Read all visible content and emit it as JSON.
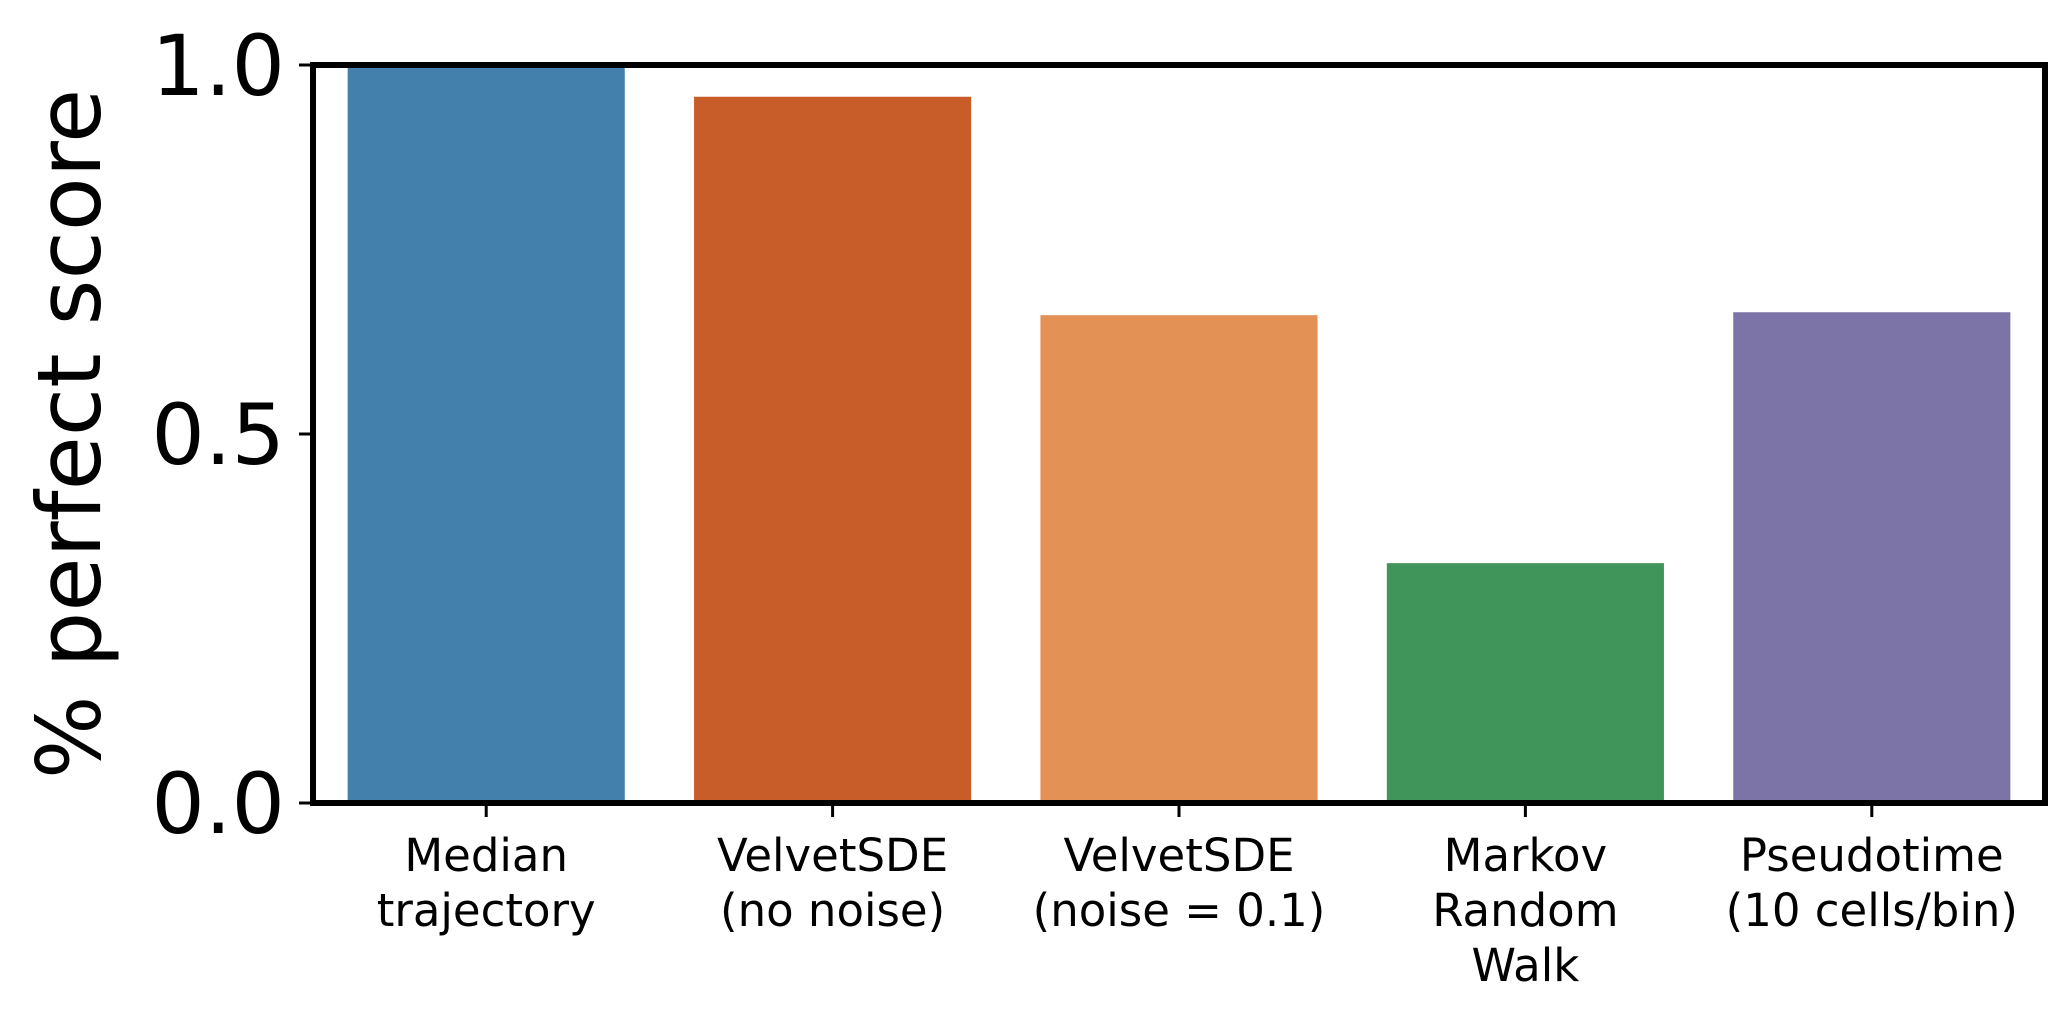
{
  "chart_data": {
    "type": "bar",
    "title": "",
    "xlabel": "",
    "ylabel": "% perfect score",
    "ylim": [
      0,
      1.0
    ],
    "yticks": [
      "0.0",
      "0.5",
      "1.0"
    ],
    "categories": [
      [
        "Median",
        "trajectory"
      ],
      [
        "VelvetSDE",
        "(no noise)"
      ],
      [
        "VelvetSDE",
        "(noise = 0.1)"
      ],
      [
        "Markov",
        "Random",
        "Walk"
      ],
      [
        "Pseudotime",
        "(10 cells/bin)"
      ]
    ],
    "values": [
      1.0,
      0.957,
      0.661,
      0.325,
      0.665
    ],
    "colors": [
      "#4380ac",
      "#c95d29",
      "#e49155",
      "#40965a",
      "#7c74a6"
    ],
    "grid": false,
    "legend": "none"
  }
}
